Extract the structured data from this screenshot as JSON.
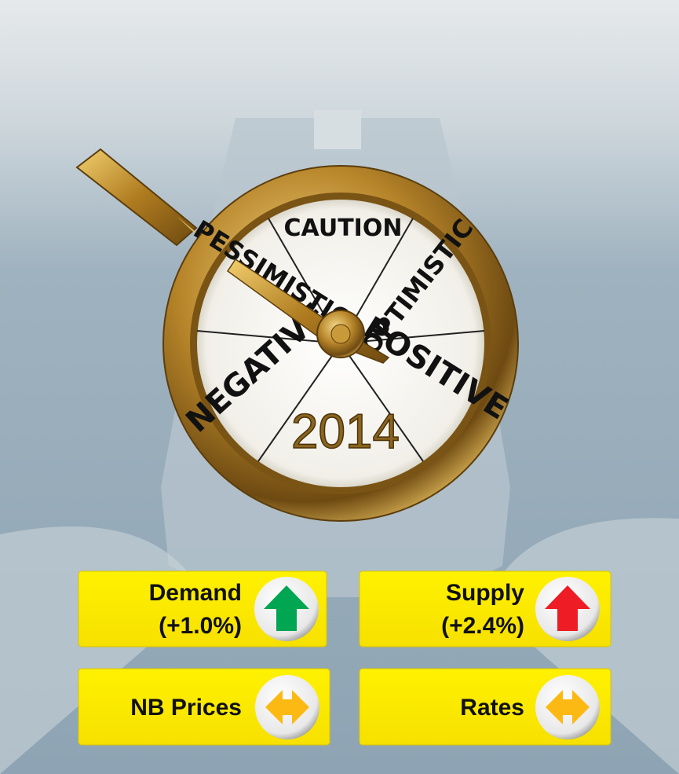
{
  "dial": {
    "labels": [
      "CAUTION",
      "PESSIMISTIC",
      "OPTIMISTIC",
      "NEGATIVE",
      "POSITIVE"
    ],
    "year": "2014"
  },
  "indicators": [
    {
      "label": "Demand",
      "change": "(+1.0%)"
    },
    {
      "label": "Supply",
      "change": "(+2.4%)"
    },
    {
      "label": "NB Prices"
    },
    {
      "label": "Rates"
    }
  ]
}
